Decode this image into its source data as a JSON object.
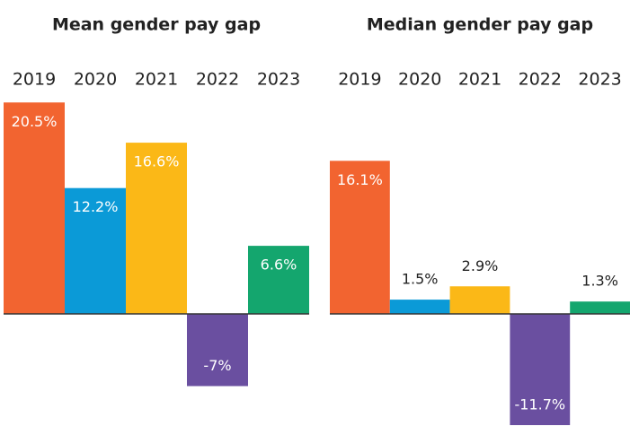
{
  "chart_data": [
    {
      "type": "bar",
      "title": "Mean gender pay gap",
      "categories": [
        "2019",
        "2020",
        "2021",
        "2022",
        "2023"
      ],
      "values": [
        20.5,
        12.2,
        16.6,
        -7,
        6.6
      ],
      "value_labels": [
        "20.5%",
        "12.2%",
        "16.6%",
        "-7%",
        "6.6%"
      ],
      "colors": [
        "#f26430",
        "#0b9ad7",
        "#fbb817",
        "#6a4fa0",
        "#14a66e"
      ]
    },
    {
      "type": "bar",
      "title": "Median gender pay gap",
      "categories": [
        "2019",
        "2020",
        "2021",
        "2022",
        "2023"
      ],
      "values": [
        16.1,
        1.5,
        2.9,
        -11.7,
        1.3
      ],
      "value_labels": [
        "16.1%",
        "1.5%",
        "2.9%",
        "-11.7%",
        "1.3%"
      ],
      "colors": [
        "#f26430",
        "#0b9ad7",
        "#fbb817",
        "#6a4fa0",
        "#14a66e"
      ]
    }
  ]
}
